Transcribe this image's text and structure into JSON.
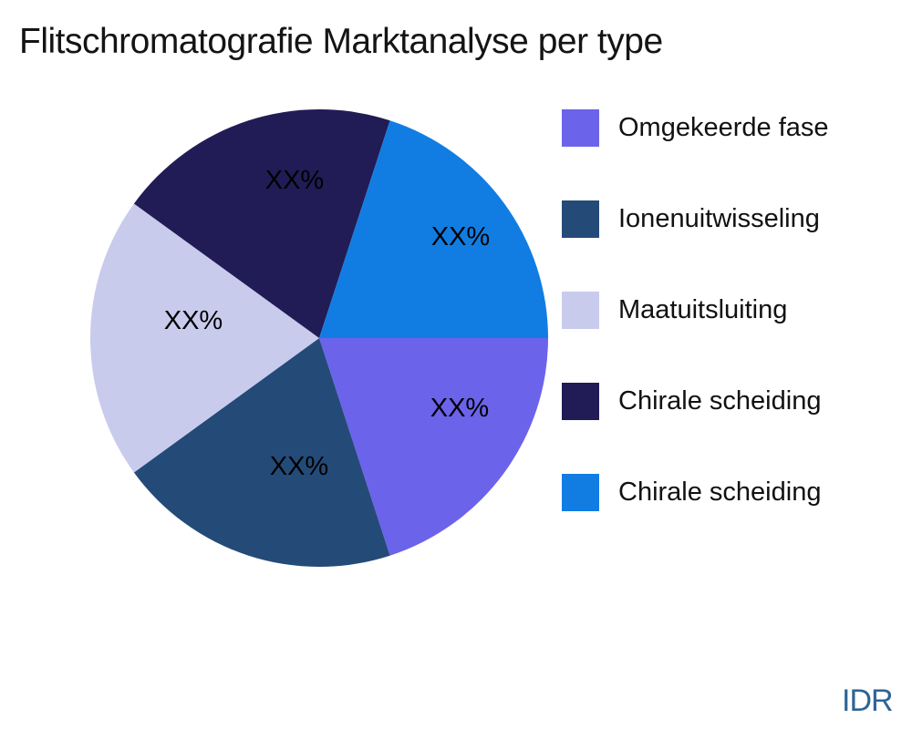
{
  "header": {
    "title": "Flitschromatografie Marktanalyse per type"
  },
  "chart_data": {
    "type": "pie",
    "title": "Flitschromatografie Marktanalyse per type",
    "labels": [
      "Omgekeerde fase",
      "Ionenuitwisseling",
      "Maatuitsluiting",
      "Chirale scheiding",
      "Chirale scheiding"
    ],
    "values": [
      20,
      20,
      20,
      20,
      20
    ],
    "value_labels": [
      "XX%",
      "XX%",
      "XX%",
      "XX%",
      "XX%"
    ],
    "colors": [
      "#6C63EB",
      "#244B78",
      "#C9CBED",
      "#211C55",
      "#117DE3"
    ],
    "start_angle_deg": 0,
    "direction": "clockwise",
    "legend_position": "right",
    "value_label_color": "#000000"
  },
  "footer": {
    "brand_label": "IDR",
    "brand_color": "#2E6496"
  }
}
